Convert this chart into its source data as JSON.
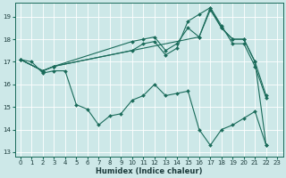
{
  "xlabel": "Humidex (Indice chaleur)",
  "bg_color": "#cde8e8",
  "grid_color": "#b8d8d8",
  "line_color": "#1a6b5a",
  "xlim": [
    -0.5,
    23.5
  ],
  "ylim": [
    12.8,
    19.6
  ],
  "yticks": [
    13,
    14,
    15,
    16,
    17,
    18,
    19
  ],
  "xticks": [
    0,
    1,
    2,
    3,
    4,
    5,
    6,
    7,
    8,
    9,
    10,
    11,
    12,
    13,
    14,
    15,
    16,
    17,
    18,
    19,
    20,
    21,
    22,
    23
  ],
  "lines": [
    {
      "x": [
        0,
        1,
        2,
        3,
        4,
        5,
        6,
        7,
        8,
        9,
        10,
        11,
        12,
        13,
        14,
        15,
        16,
        17,
        18,
        19,
        20,
        21,
        22
      ],
      "y": [
        17.1,
        17.0,
        16.5,
        16.6,
        16.6,
        15.1,
        14.9,
        14.2,
        14.6,
        14.7,
        15.3,
        15.5,
        16.0,
        15.5,
        15.6,
        15.7,
        14.0,
        13.3,
        14.0,
        14.2,
        14.5,
        14.8,
        13.3
      ]
    },
    {
      "x": [
        0,
        2,
        3,
        10,
        11,
        12,
        13,
        14,
        15,
        16,
        17,
        18,
        19,
        20,
        21,
        22
      ],
      "y": [
        17.1,
        16.6,
        16.8,
        17.9,
        18.0,
        18.1,
        17.5,
        17.8,
        18.5,
        18.1,
        19.3,
        18.5,
        18.0,
        18.0,
        17.0,
        15.5
      ]
    },
    {
      "x": [
        0,
        2,
        3,
        10,
        11,
        12,
        13,
        14,
        15,
        16,
        17,
        18,
        19,
        20,
        21,
        22
      ],
      "y": [
        17.1,
        16.6,
        16.8,
        17.5,
        17.8,
        17.9,
        17.3,
        17.6,
        18.8,
        19.1,
        19.4,
        18.6,
        17.8,
        17.8,
        16.8,
        15.4
      ]
    },
    {
      "x": [
        0,
        2,
        3,
        16,
        17,
        18,
        19,
        20,
        21,
        22
      ],
      "y": [
        17.1,
        16.6,
        16.8,
        18.1,
        19.4,
        18.5,
        18.0,
        18.0,
        17.0,
        13.3
      ]
    }
  ]
}
